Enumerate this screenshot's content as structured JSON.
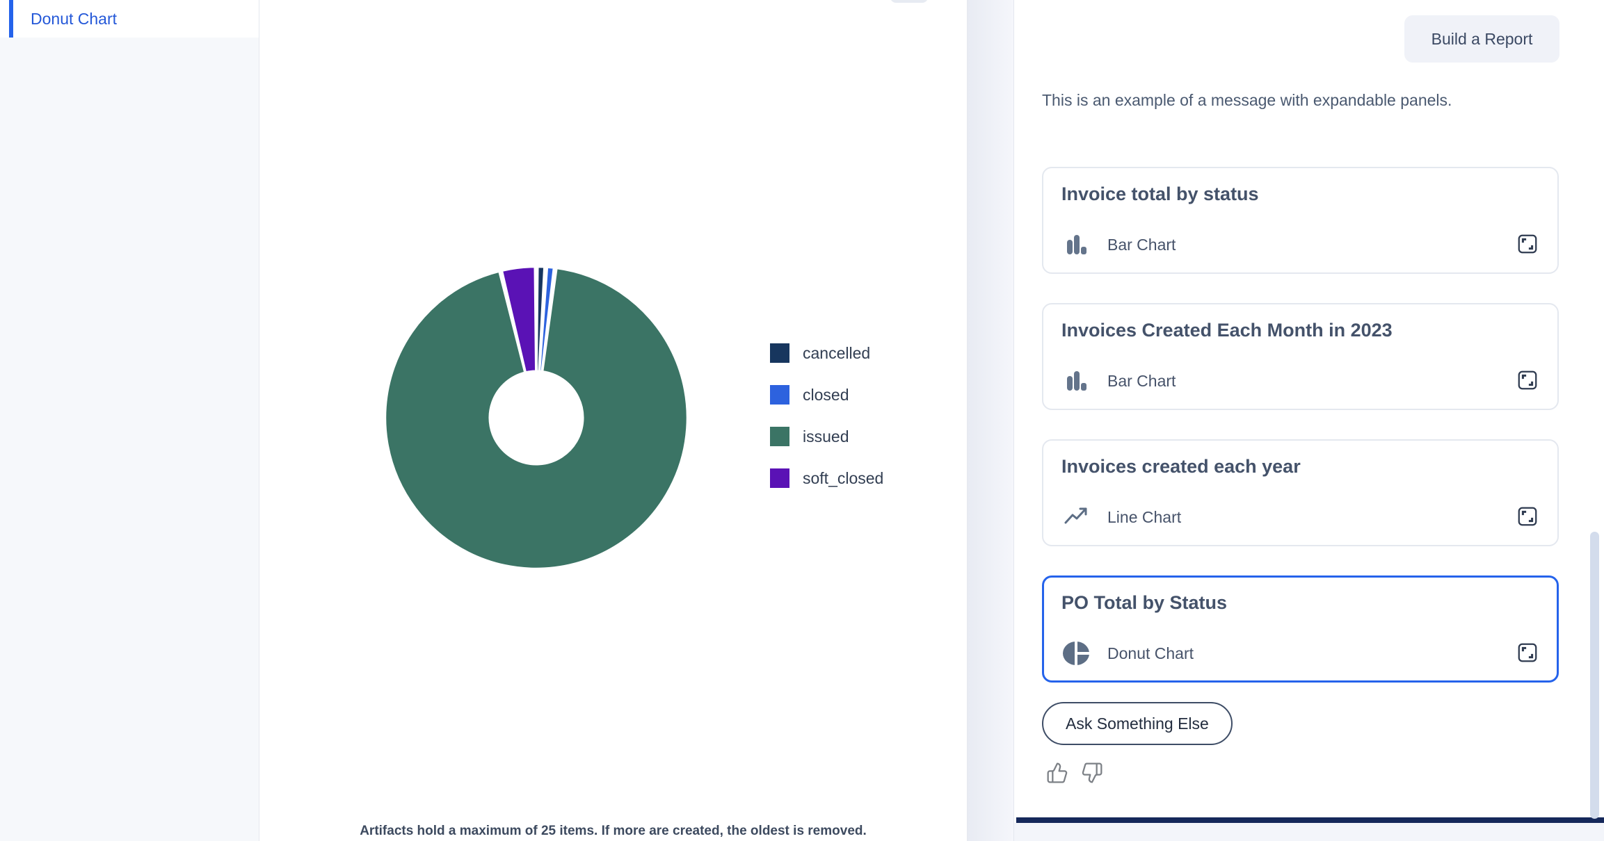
{
  "sidebar": {
    "items": [
      {
        "label": "Donut Chart",
        "active": true
      }
    ]
  },
  "artifact_viewer": {
    "note": "Artifacts hold a maximum of 25 items. If more are created, the oldest is removed."
  },
  "chart_data": {
    "type": "pie",
    "variant": "donut",
    "title": "PO Total by Status",
    "categories": [
      "cancelled",
      "closed",
      "issued",
      "soft_closed"
    ],
    "values_percent": [
      1.0,
      1.0,
      94.2,
      3.8
    ],
    "colors": [
      "#17365e",
      "#2d62de",
      "#3b7465",
      "#5a12b5"
    ],
    "legend_position": "right",
    "inner_radius_ratio": 0.31,
    "start_angle": "12-oclock",
    "direction": "clockwise",
    "slice_gap_deg": 1.2
  },
  "chat": {
    "build_report_label": "Build a Report",
    "message": "This is an example of a message with expandable panels.",
    "cards": [
      {
        "title": "Invoice total by status",
        "chart_type": "Bar Chart",
        "icon": "bar-chart",
        "selected": false
      },
      {
        "title": "Invoices Created Each Month in 2023",
        "chart_type": "Bar Chart",
        "icon": "bar-chart",
        "selected": false
      },
      {
        "title": "Invoices created each year",
        "chart_type": "Line Chart",
        "icon": "line-chart",
        "selected": false
      },
      {
        "title": "PO Total by Status",
        "chart_type": "Donut Chart",
        "icon": "donut-chart",
        "selected": true
      }
    ],
    "ask_button_label": "Ask Something Else"
  },
  "colors": {
    "accent": "#2563eb",
    "selected_card_border": "#2563eb",
    "bottom_bar": "#15285a",
    "scrollbar_thumb": "#d3dcec"
  }
}
